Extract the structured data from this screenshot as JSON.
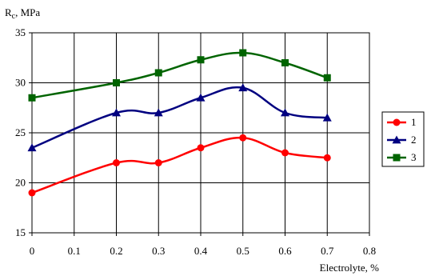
{
  "chart_data": {
    "type": "line",
    "ylabel_main": "R",
    "ylabel_sub": "c",
    "ylabel_unit": ", MPa",
    "xlabel": "Electrolyte, %",
    "xlim": [
      0,
      0.8
    ],
    "ylim": [
      15,
      35
    ],
    "x_ticks": [
      0,
      0.1,
      0.2,
      0.3,
      0.4,
      0.5,
      0.6,
      0.7,
      0.8
    ],
    "x_tick_labels": [
      "0",
      "0.1",
      "0.2",
      "0.3",
      "0.4",
      "0.5",
      "0.6",
      "0.7",
      "0.8"
    ],
    "y_ticks": [
      15,
      20,
      25,
      30,
      35
    ],
    "y_tick_labels": [
      "15",
      "20",
      "25",
      "30",
      "35"
    ],
    "grid": true,
    "legend_position": "right",
    "x": [
      0,
      0.2,
      0.3,
      0.4,
      0.5,
      0.6,
      0.7
    ],
    "series": [
      {
        "name": "1",
        "color": "#ff0000",
        "marker": "circle",
        "values": [
          19.0,
          22.0,
          22.0,
          23.5,
          24.5,
          23.0,
          22.5
        ]
      },
      {
        "name": "2",
        "color": "#000080",
        "marker": "triangle",
        "values": [
          23.5,
          27.0,
          27.0,
          28.5,
          29.5,
          27.0,
          26.5
        ]
      },
      {
        "name": "3",
        "color": "#006400",
        "marker": "square",
        "values": [
          28.5,
          30.0,
          31.0,
          32.3,
          33.0,
          32.0,
          30.5
        ]
      }
    ]
  }
}
